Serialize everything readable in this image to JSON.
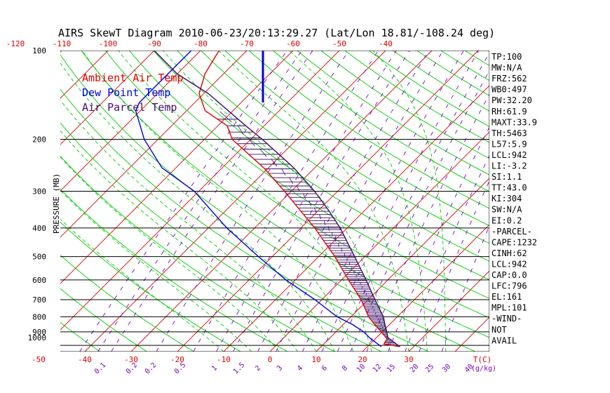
{
  "chart_data": {
    "type": "line",
    "title": "AIRS SkewT Diagram 2010-06-23/20:13:29.27 (Lat/Lon 18.81/-108.24 deg)",
    "ylabel": "PRESSURE (MB)",
    "x_unit_label": "T(C)",
    "mixing_ratio_unit_label": "(g/kg)",
    "pressure_ticks": [
      100,
      200,
      300,
      400,
      500,
      600,
      700,
      800,
      900,
      1000
    ],
    "bottom_temp_ticks": [
      -50,
      -40,
      -30,
      -20,
      -10,
      0,
      10,
      20,
      30
    ],
    "top_temp_ticks": [
      -120,
      -110,
      -100,
      -90,
      -80,
      -70,
      -60,
      -50,
      -40
    ],
    "mixing_ratio_labels": [
      "0.1",
      "0.2",
      "0.2",
      "0.5",
      "1",
      "1.5",
      "2",
      "3",
      "4",
      "6",
      "8",
      "10",
      "12",
      "15",
      "20",
      "25",
      "30",
      "40"
    ],
    "legend": [
      {
        "name": "Ambient Air Temp",
        "color": "#dd0000"
      },
      {
        "name": "Dew Point Temp",
        "color": "#0000dd"
      },
      {
        "name": "Air Parcel Temp",
        "color": "#4a0a7a"
      }
    ],
    "colors": {
      "isotherm": "#dd0000",
      "dry_adiabat": "#00cc00",
      "moist_adiabat": "#00cc00",
      "mixing_ratio": "#7a00d0",
      "isobar": "#000000",
      "temperature": "#dd0000",
      "dewpoint": "#0000dd",
      "parcel": "#3a0a6a",
      "cape_hatch": "#3a0a6a"
    },
    "series": [
      {
        "name": "Ambient Air Temp",
        "points": [
          [
            1010,
            27
          ],
          [
            990,
            23
          ],
          [
            950,
            22.5
          ],
          [
            900,
            19.8
          ],
          [
            850,
            16.8
          ],
          [
            800,
            13.8
          ],
          [
            700,
            8.5
          ],
          [
            600,
            1.5
          ],
          [
            500,
            -6.5
          ],
          [
            400,
            -17
          ],
          [
            300,
            -31.5
          ],
          [
            250,
            -41
          ],
          [
            200,
            -54
          ],
          [
            180,
            -58
          ],
          [
            160,
            -66
          ],
          [
            140,
            -71
          ],
          [
            120,
            -74
          ],
          [
            100,
            -76
          ]
        ]
      },
      {
        "name": "Dew Point Temp",
        "points": [
          [
            1010,
            23
          ],
          [
            950,
            19
          ],
          [
            900,
            16
          ],
          [
            850,
            12
          ],
          [
            800,
            7
          ],
          [
            700,
            -1.5
          ],
          [
            600,
            -12
          ],
          [
            500,
            -23
          ],
          [
            400,
            -36
          ],
          [
            300,
            -51
          ],
          [
            250,
            -63
          ],
          [
            200,
            -73
          ],
          [
            160,
            -81
          ],
          [
            150,
            -82
          ],
          [
            140,
            -82
          ],
          [
            100,
            -82
          ]
        ]
      },
      {
        "name": "Air Parcel Temp",
        "points": [
          [
            1010,
            27
          ],
          [
            942,
            22.5
          ],
          [
            900,
            21
          ],
          [
            850,
            19
          ],
          [
            800,
            17
          ],
          [
            700,
            11.5
          ],
          [
            600,
            5.3
          ],
          [
            500,
            -2.2
          ],
          [
            400,
            -11.5
          ],
          [
            350,
            -17.6
          ],
          [
            300,
            -25
          ],
          [
            250,
            -34.5
          ],
          [
            200,
            -47.5
          ],
          [
            180,
            -54
          ],
          [
            160,
            -61
          ],
          [
            140,
            -69
          ],
          [
            120,
            -80
          ],
          [
            100,
            -90
          ]
        ]
      }
    ],
    "indices": [
      "TP:100",
      "MW:N/A",
      "FRZ:562",
      "WB0:497",
      "PW:32.20",
      "RH:61.9",
      "MAXT:33.9",
      "TH:5463",
      "L57:5.9",
      "LCL:942",
      "LI:-3.2",
      "SI:1.1",
      "TT:43.0",
      "KI:304",
      "SW:N/A",
      "EI:0.2",
      "-PARCEL-",
      "CAPE:1232",
      "CINH:62",
      "LCL:942",
      "CAP:0.0",
      "LFC:796",
      "EL:161",
      "MPL:101",
      "-WIND-",
      "NOT",
      "AVAIL"
    ]
  }
}
